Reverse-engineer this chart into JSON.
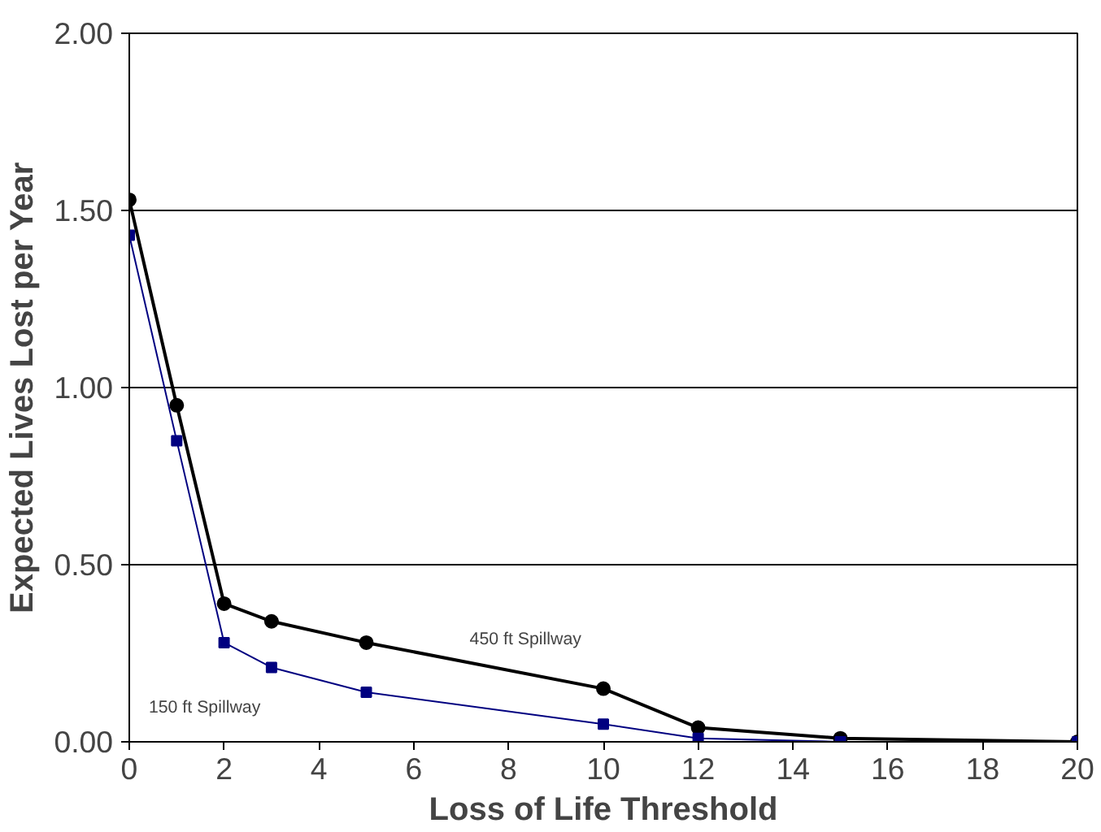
{
  "chart_data": {
    "type": "line",
    "xlabel": "Loss of Life Threshold",
    "ylabel": "Expected Lives Lost per Year",
    "xlim": [
      0,
      20
    ],
    "xticks": [
      0,
      2,
      4,
      6,
      8,
      10,
      12,
      14,
      16,
      18,
      20
    ],
    "ylim": [
      0,
      2
    ],
    "yticks": [
      {
        "value": 0,
        "label": "0.00"
      },
      {
        "value": 0.5,
        "label": "0.50"
      },
      {
        "value": 1,
        "label": "1.00"
      },
      {
        "value": 1.5,
        "label": "1.50"
      },
      {
        "value": 2,
        "label": "2.00"
      }
    ],
    "grid": "y",
    "series": [
      {
        "name": "450 ft Spillway",
        "color": "#000000",
        "marker": "circle",
        "x": [
          0,
          1,
          2,
          3,
          5,
          10,
          12,
          15,
          20
        ],
        "values": [
          1.53,
          0.95,
          0.39,
          0.34,
          0.28,
          0.15,
          0.04,
          0.01,
          0.0
        ]
      },
      {
        "name": "150 ft Spillway",
        "color": "#000080",
        "marker": "square",
        "x": [
          0,
          1,
          2,
          3,
          5,
          10,
          12,
          15,
          20
        ],
        "values": [
          1.43,
          0.85,
          0.28,
          0.21,
          0.14,
          0.05,
          0.01,
          0.0,
          0.0
        ]
      }
    ]
  }
}
